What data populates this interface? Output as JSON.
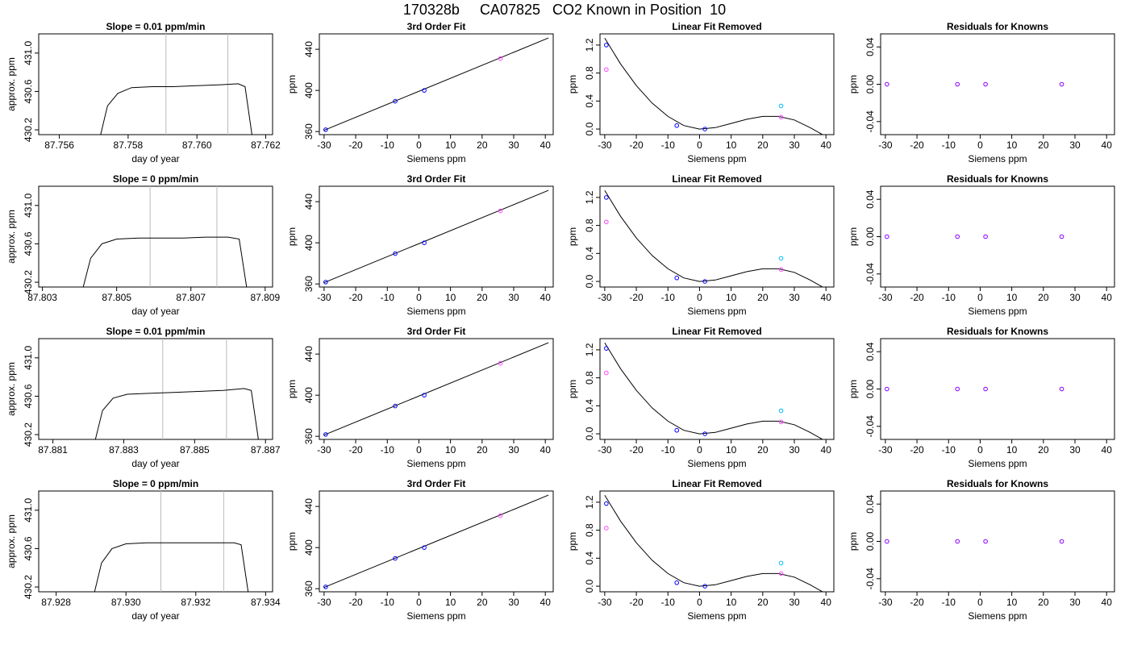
{
  "title": "170328b     CA07825   CO2 Known in Position  10",
  "chart_data": [
    {
      "type": "line",
      "title": "Slope =  0.01  ppm/min",
      "xlabel": "day of year",
      "ylabel": "approx. ppm",
      "xlim": [
        87.7554,
        87.7622
      ],
      "ylim": [
        430.15,
        431.2
      ],
      "xticks": [
        "87.756",
        "87.758",
        "87.760",
        "87.762"
      ],
      "yticks": [
        "430.2",
        "430.6",
        "431.0"
      ],
      "vlines": [
        87.7591,
        87.7609
      ],
      "series": [
        {
          "x": [
            87.7572,
            87.7574,
            87.7577,
            87.7581,
            87.7587,
            87.7593,
            87.76,
            87.7607,
            87.7612,
            87.7614,
            87.7616
          ],
          "values": [
            430.15,
            430.45,
            430.58,
            430.64,
            430.65,
            430.65,
            430.66,
            430.67,
            430.68,
            430.65,
            430.15
          ]
        }
      ],
      "grid": false
    },
    {
      "type": "scatter",
      "title": "3rd Order Fit",
      "xlabel": "Siemens ppm",
      "ylabel": "ppm",
      "xlim": [
        -31.5,
        42.5
      ],
      "ylim": [
        357,
        455
      ],
      "xticks": [
        "-30",
        "-20",
        "-10",
        "0",
        "10",
        "20",
        "30",
        "40"
      ],
      "yticks": [
        "360",
        "400",
        "440"
      ],
      "fit_line": {
        "x": [
          -30,
          41
        ],
        "values": [
          361.2,
          451
        ]
      },
      "points": {
        "x": [
          -29.5,
          -7.5,
          1.7,
          25.8
        ],
        "values": [
          361.8,
          389.5,
          400.0,
          431.0
        ],
        "colors": [
          "#0000ff",
          "#0000ff",
          "#0000ff",
          "#ff44ff"
        ]
      },
      "grid": false
    },
    {
      "type": "scatter",
      "title": "Linear Fit Removed",
      "xlabel": "Siemens ppm",
      "ylabel": "ppm",
      "xlim": [
        -31.5,
        42.5
      ],
      "ylim": [
        -0.08,
        1.36
      ],
      "xticks": [
        "-30",
        "-20",
        "-10",
        "0",
        "10",
        "20",
        "30",
        "40"
      ],
      "yticks": [
        "0.0",
        "0.4",
        "0.8",
        "1.2"
      ],
      "curve": {
        "x": [
          -30,
          -25,
          -20,
          -15,
          -10,
          -5,
          0,
          5,
          10,
          15,
          20,
          25,
          30,
          35,
          40.5
        ],
        "values": [
          1.3,
          0.93,
          0.62,
          0.37,
          0.18,
          0.05,
          0.0,
          0.02,
          0.08,
          0.14,
          0.18,
          0.18,
          0.13,
          0.02,
          -0.12
        ]
      },
      "points_blue": {
        "x": [
          -29.5,
          -7.2,
          1.7
        ],
        "values": [
          1.2,
          0.05,
          0.0
        ]
      },
      "points_magenta": {
        "x": [
          -29.5,
          25.8
        ],
        "values": [
          0.85,
          0.17
        ]
      },
      "points_cyan": {
        "x": [
          25.8
        ],
        "values": [
          0.33
        ]
      },
      "grid": false
    },
    {
      "type": "scatter",
      "title": "Residuals for Knowns",
      "xlabel": "Siemens ppm",
      "ylabel": "ppm",
      "xlim": [
        -31.5,
        42.5
      ],
      "ylim": [
        -0.054,
        0.054
      ],
      "xticks": [
        "-30",
        "-20",
        "-10",
        "0",
        "10",
        "20",
        "30",
        "40"
      ],
      "yticks": [
        "-0.04",
        "0.00",
        "0.04"
      ],
      "points": {
        "x": [
          -29.5,
          -7.2,
          1.7,
          25.8
        ],
        "values": [
          0,
          0,
          0,
          0
        ]
      },
      "grid": false
    },
    {
      "type": "line",
      "title": "Slope =  0  ppm/min",
      "xlabel": "day of year",
      "ylabel": "approx. ppm",
      "xlim": [
        87.8029,
        87.8092
      ],
      "ylim": [
        430.15,
        431.2
      ],
      "xticks": [
        "87.803",
        "87.805",
        "87.807",
        "87.809"
      ],
      "yticks": [
        "430.2",
        "430.6",
        "431.0"
      ],
      "vlines": [
        87.8059,
        87.8077
      ],
      "series": [
        {
          "x": [
            87.8041,
            87.8043,
            87.8046,
            87.805,
            87.8056,
            87.8062,
            87.8068,
            87.8074,
            87.808,
            87.8083,
            87.8085
          ],
          "values": [
            430.15,
            430.45,
            430.6,
            430.65,
            430.66,
            430.66,
            430.66,
            430.67,
            430.67,
            430.65,
            430.15
          ]
        }
      ],
      "grid": false
    },
    {
      "type": "scatter",
      "title": "3rd Order Fit",
      "xlabel": "Siemens ppm",
      "ylabel": "ppm",
      "xlim": [
        -31.5,
        42.5
      ],
      "ylim": [
        357,
        455
      ],
      "xticks": [
        "-30",
        "-20",
        "-10",
        "0",
        "10",
        "20",
        "30",
        "40"
      ],
      "yticks": [
        "360",
        "400",
        "440"
      ],
      "fit_line": {
        "x": [
          -30,
          41
        ],
        "values": [
          361.2,
          451
        ]
      },
      "points": {
        "x": [
          -29.5,
          -7.5,
          1.7,
          25.8
        ],
        "values": [
          361.8,
          389.5,
          400.0,
          431.0
        ],
        "colors": [
          "#0000ff",
          "#0000ff",
          "#0000ff",
          "#ff44ff"
        ]
      },
      "grid": false
    },
    {
      "type": "scatter",
      "title": "Linear Fit Removed",
      "xlabel": "Siemens ppm",
      "ylabel": "ppm",
      "xlim": [
        -31.5,
        42.5
      ],
      "ylim": [
        -0.08,
        1.36
      ],
      "xticks": [
        "-30",
        "-20",
        "-10",
        "0",
        "10",
        "20",
        "30",
        "40"
      ],
      "yticks": [
        "0.0",
        "0.4",
        "0.8",
        "1.2"
      ],
      "curve": {
        "x": [
          -30,
          -25,
          -20,
          -15,
          -10,
          -5,
          0,
          5,
          10,
          15,
          20,
          25,
          30,
          35,
          40.5
        ],
        "values": [
          1.3,
          0.93,
          0.62,
          0.37,
          0.18,
          0.05,
          0.0,
          0.02,
          0.08,
          0.14,
          0.18,
          0.18,
          0.13,
          0.02,
          -0.12
        ]
      },
      "points_blue": {
        "x": [
          -29.5,
          -7.2,
          1.7
        ],
        "values": [
          1.2,
          0.05,
          0.0
        ]
      },
      "points_magenta": {
        "x": [
          -29.5,
          25.8
        ],
        "values": [
          0.85,
          0.17
        ]
      },
      "points_cyan": {
        "x": [
          25.8
        ],
        "values": [
          0.33
        ]
      },
      "grid": false
    },
    {
      "type": "scatter",
      "title": "Residuals for Knowns",
      "xlabel": "Siemens ppm",
      "ylabel": "ppm",
      "xlim": [
        -31.5,
        42.5
      ],
      "ylim": [
        -0.054,
        0.054
      ],
      "xticks": [
        "-30",
        "-20",
        "-10",
        "0",
        "10",
        "20",
        "30",
        "40"
      ],
      "yticks": [
        "-0.04",
        "0.00",
        "0.04"
      ],
      "points": {
        "x": [
          -29.5,
          -7.2,
          1.7,
          25.8
        ],
        "values": [
          0,
          0,
          0,
          0
        ]
      },
      "grid": false
    },
    {
      "type": "line",
      "title": "Slope =  0.01  ppm/min",
      "xlabel": "day of year",
      "ylabel": "approx. ppm",
      "xlim": [
        87.8806,
        87.8872
      ],
      "ylim": [
        430.15,
        431.2
      ],
      "xticks": [
        "87.881",
        "87.883",
        "87.885",
        "87.887"
      ],
      "yticks": [
        "430.2",
        "430.6",
        "431.0"
      ],
      "vlines": [
        87.8841,
        87.8859
      ],
      "series": [
        {
          "x": [
            87.8822,
            87.8824,
            87.8827,
            87.8831,
            87.8837,
            87.8844,
            87.8851,
            87.8858,
            87.8864,
            87.8866,
            87.8868
          ],
          "values": [
            430.15,
            430.45,
            430.58,
            430.62,
            430.63,
            430.64,
            430.65,
            430.66,
            430.68,
            430.66,
            430.15
          ]
        }
      ],
      "grid": false
    },
    {
      "type": "scatter",
      "title": "3rd Order Fit",
      "xlabel": "Siemens ppm",
      "ylabel": "ppm",
      "xlim": [
        -31.5,
        42.5
      ],
      "ylim": [
        357,
        455
      ],
      "xticks": [
        "-30",
        "-20",
        "-10",
        "0",
        "10",
        "20",
        "30",
        "40"
      ],
      "yticks": [
        "360",
        "400",
        "440"
      ],
      "fit_line": {
        "x": [
          -30,
          41
        ],
        "values": [
          361.2,
          451
        ]
      },
      "points": {
        "x": [
          -29.5,
          -7.5,
          1.7,
          25.8
        ],
        "values": [
          361.8,
          389.5,
          400.0,
          431.0
        ],
        "colors": [
          "#0000ff",
          "#0000ff",
          "#0000ff",
          "#ff44ff"
        ]
      },
      "grid": false
    },
    {
      "type": "scatter",
      "title": "Linear Fit Removed",
      "xlabel": "Siemens ppm",
      "ylabel": "ppm",
      "xlim": [
        -31.5,
        42.5
      ],
      "ylim": [
        -0.08,
        1.36
      ],
      "xticks": [
        "-30",
        "-20",
        "-10",
        "0",
        "10",
        "20",
        "30",
        "40"
      ],
      "yticks": [
        "0.0",
        "0.4",
        "0.8",
        "1.2"
      ],
      "curve": {
        "x": [
          -30,
          -25,
          -20,
          -15,
          -10,
          -5,
          0,
          5,
          10,
          15,
          20,
          25,
          30,
          35,
          40.5
        ],
        "values": [
          1.3,
          0.93,
          0.62,
          0.37,
          0.18,
          0.05,
          0.0,
          0.02,
          0.08,
          0.14,
          0.18,
          0.18,
          0.13,
          0.02,
          -0.12
        ]
      },
      "points_blue": {
        "x": [
          -29.5,
          -7.2,
          1.7
        ],
        "values": [
          1.22,
          0.05,
          0.0
        ]
      },
      "points_magenta": {
        "x": [
          -29.5,
          25.8
        ],
        "values": [
          0.87,
          0.17
        ]
      },
      "points_cyan": {
        "x": [
          25.8
        ],
        "values": [
          0.33
        ]
      },
      "grid": false
    },
    {
      "type": "scatter",
      "title": "Residuals for Knowns",
      "xlabel": "Siemens ppm",
      "ylabel": "ppm",
      "xlim": [
        -31.5,
        42.5
      ],
      "ylim": [
        -0.054,
        0.054
      ],
      "xticks": [
        "-30",
        "-20",
        "-10",
        "0",
        "10",
        "20",
        "30",
        "40"
      ],
      "yticks": [
        "-0.04",
        "0.00",
        "0.04"
      ],
      "points": {
        "x": [
          -29.5,
          -7.2,
          1.7,
          25.8
        ],
        "values": [
          0,
          0,
          0,
          0
        ]
      },
      "grid": false
    },
    {
      "type": "line",
      "title": "Slope =  0  ppm/min",
      "xlabel": "day of year",
      "ylabel": "approx. ppm",
      "xlim": [
        87.9275,
        87.9342
      ],
      "ylim": [
        430.15,
        431.2
      ],
      "xticks": [
        "87.928",
        "87.930",
        "87.932",
        "87.934"
      ],
      "yticks": [
        "430.2",
        "430.6",
        "431.0"
      ],
      "vlines": [
        87.931,
        87.9328
      ],
      "series": [
        {
          "x": [
            87.9291,
            87.9293,
            87.9296,
            87.93,
            87.9306,
            87.9312,
            87.9318,
            87.9324,
            87.9331,
            87.9333,
            87.9335
          ],
          "values": [
            430.15,
            430.45,
            430.6,
            430.65,
            430.66,
            430.66,
            430.66,
            430.66,
            430.66,
            430.64,
            430.15
          ]
        }
      ],
      "grid": false
    },
    {
      "type": "scatter",
      "title": "3rd Order Fit",
      "xlabel": "Siemens ppm",
      "ylabel": "ppm",
      "xlim": [
        -31.5,
        42.5
      ],
      "ylim": [
        357,
        455
      ],
      "xticks": [
        "-30",
        "-20",
        "-10",
        "0",
        "10",
        "20",
        "30",
        "40"
      ],
      "yticks": [
        "360",
        "400",
        "440"
      ],
      "fit_line": {
        "x": [
          -30,
          41
        ],
        "values": [
          361.2,
          451
        ]
      },
      "points": {
        "x": [
          -29.5,
          -7.5,
          1.7,
          25.8
        ],
        "values": [
          361.8,
          389.5,
          400.0,
          431.0
        ],
        "colors": [
          "#0000ff",
          "#0000ff",
          "#0000ff",
          "#ff44ff"
        ]
      },
      "grid": false
    },
    {
      "type": "scatter",
      "title": "Linear Fit Removed",
      "xlabel": "Siemens ppm",
      "ylabel": "ppm",
      "xlim": [
        -31.5,
        42.5
      ],
      "ylim": [
        -0.08,
        1.36
      ],
      "xticks": [
        "-30",
        "-20",
        "-10",
        "0",
        "10",
        "20",
        "30",
        "40"
      ],
      "yticks": [
        "0.0",
        "0.4",
        "0.8",
        "1.2"
      ],
      "curve": {
        "x": [
          -30,
          -25,
          -20,
          -15,
          -10,
          -5,
          0,
          5,
          10,
          15,
          20,
          25,
          30,
          35,
          40.5
        ],
        "values": [
          1.3,
          0.93,
          0.62,
          0.37,
          0.18,
          0.05,
          0.0,
          0.02,
          0.08,
          0.14,
          0.18,
          0.18,
          0.13,
          0.02,
          -0.12
        ]
      },
      "points_blue": {
        "x": [
          -29.5,
          -7.2,
          1.7
        ],
        "values": [
          1.18,
          0.05,
          0.0
        ]
      },
      "points_magenta": {
        "x": [
          -29.5,
          25.8
        ],
        "values": [
          0.83,
          0.18
        ]
      },
      "points_cyan": {
        "x": [
          25.8
        ],
        "values": [
          0.33
        ]
      },
      "grid": false
    },
    {
      "type": "scatter",
      "title": "Residuals for Knowns",
      "xlabel": "Siemens ppm",
      "ylabel": "ppm",
      "xlim": [
        -31.5,
        42.5
      ],
      "ylim": [
        -0.054,
        0.054
      ],
      "xticks": [
        "-30",
        "-20",
        "-10",
        "0",
        "10",
        "20",
        "30",
        "40"
      ],
      "yticks": [
        "-0.04",
        "0.00",
        "0.04"
      ],
      "points": {
        "x": [
          -29.5,
          -7.2,
          1.7,
          25.8
        ],
        "values": [
          0,
          0,
          0,
          0
        ]
      },
      "grid": false
    }
  ],
  "colors": {
    "axis": "#000000",
    "vline": "#bbbbbb",
    "fit_line": "#000000",
    "blue_point": "#0000ff",
    "magenta_point": "#ff44ff",
    "cyan_point": "#00bbff",
    "residual_point": "#8800ff"
  }
}
